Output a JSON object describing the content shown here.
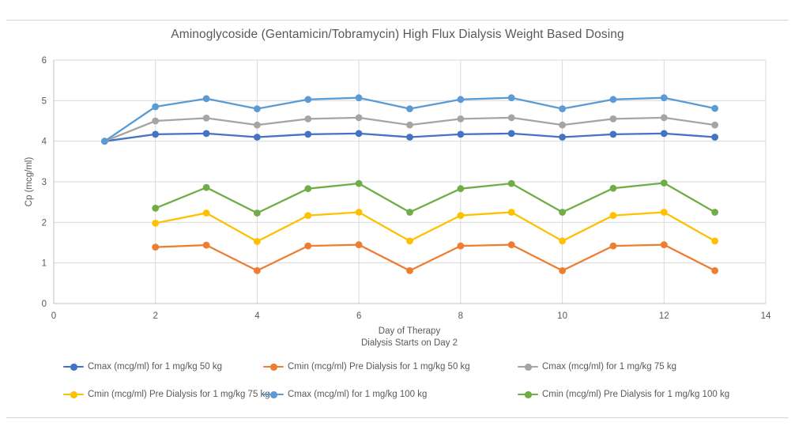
{
  "page": {
    "background": "#ffffff",
    "divider_color": "#d4d4d4",
    "text_color": "#595959",
    "gridline_color": "#d9d9d9",
    "axisline_color": "#bfbfbf"
  },
  "chart_data": {
    "type": "line",
    "title": "Aminoglycoside (Gentamicin/Tobramycin) High Flux Dialysis Weight Based Dosing",
    "xlabel": "Day of Therapy",
    "xlabel2": "Dialysis Starts on Day 2",
    "ylabel": "Cp (mcg/ml)",
    "xlim": [
      0,
      14
    ],
    "ylim": [
      0,
      6
    ],
    "x_ticks": [
      0,
      2,
      4,
      6,
      8,
      10,
      12,
      14
    ],
    "y_ticks": [
      0,
      1,
      2,
      3,
      4,
      5,
      6
    ],
    "grid": true,
    "legend_position": "bottom",
    "legend_rows": 2,
    "x": [
      1,
      2,
      3,
      4,
      5,
      6,
      7,
      8,
      9,
      10,
      11,
      12,
      13
    ],
    "series": [
      {
        "name": "Cmax (mcg/ml) for 1 mg/kg 50 kg",
        "color": "#4472C4",
        "values": [
          4.0,
          4.17,
          4.19,
          4.1,
          4.17,
          4.19,
          4.1,
          4.17,
          4.19,
          4.1,
          4.17,
          4.19,
          4.1
        ]
      },
      {
        "name": "Cmin (mcg/ml) Pre Dialysis for 1 mg/kg 50 kg",
        "color": "#ED7D31",
        "values": [
          null,
          1.39,
          1.44,
          0.81,
          1.42,
          1.45,
          0.81,
          1.42,
          1.45,
          0.81,
          1.42,
          1.45,
          0.81
        ]
      },
      {
        "name": "Cmax (mcg/ml) for 1 mg/kg 75 kg",
        "color": "#A5A5A5",
        "values": [
          4.0,
          4.5,
          4.57,
          4.4,
          4.55,
          4.58,
          4.4,
          4.55,
          4.58,
          4.4,
          4.55,
          4.58,
          4.4
        ]
      },
      {
        "name": "Cmin (mcg/ml) Pre Dialysis for 1 mg/kg 75 kg",
        "color": "#FFC000",
        "values": [
          null,
          1.98,
          2.23,
          1.53,
          2.17,
          2.25,
          1.54,
          2.17,
          2.25,
          1.54,
          2.17,
          2.25,
          1.54
        ]
      },
      {
        "name": "Cmax (mcg/ml) for 1 mg/kg 100 kg",
        "color": "#5B9BD5",
        "values": [
          4.0,
          4.85,
          5.05,
          4.8,
          5.03,
          5.07,
          4.8,
          5.03,
          5.07,
          4.8,
          5.03,
          5.07,
          4.81
        ]
      },
      {
        "name": "Cmin (mcg/ml) Pre Dialysis for 1 mg/kg 100 kg",
        "color": "#70AD47",
        "values": [
          null,
          2.35,
          2.86,
          2.23,
          2.83,
          2.96,
          2.25,
          2.83,
          2.96,
          2.25,
          2.84,
          2.97,
          2.25
        ]
      }
    ]
  }
}
